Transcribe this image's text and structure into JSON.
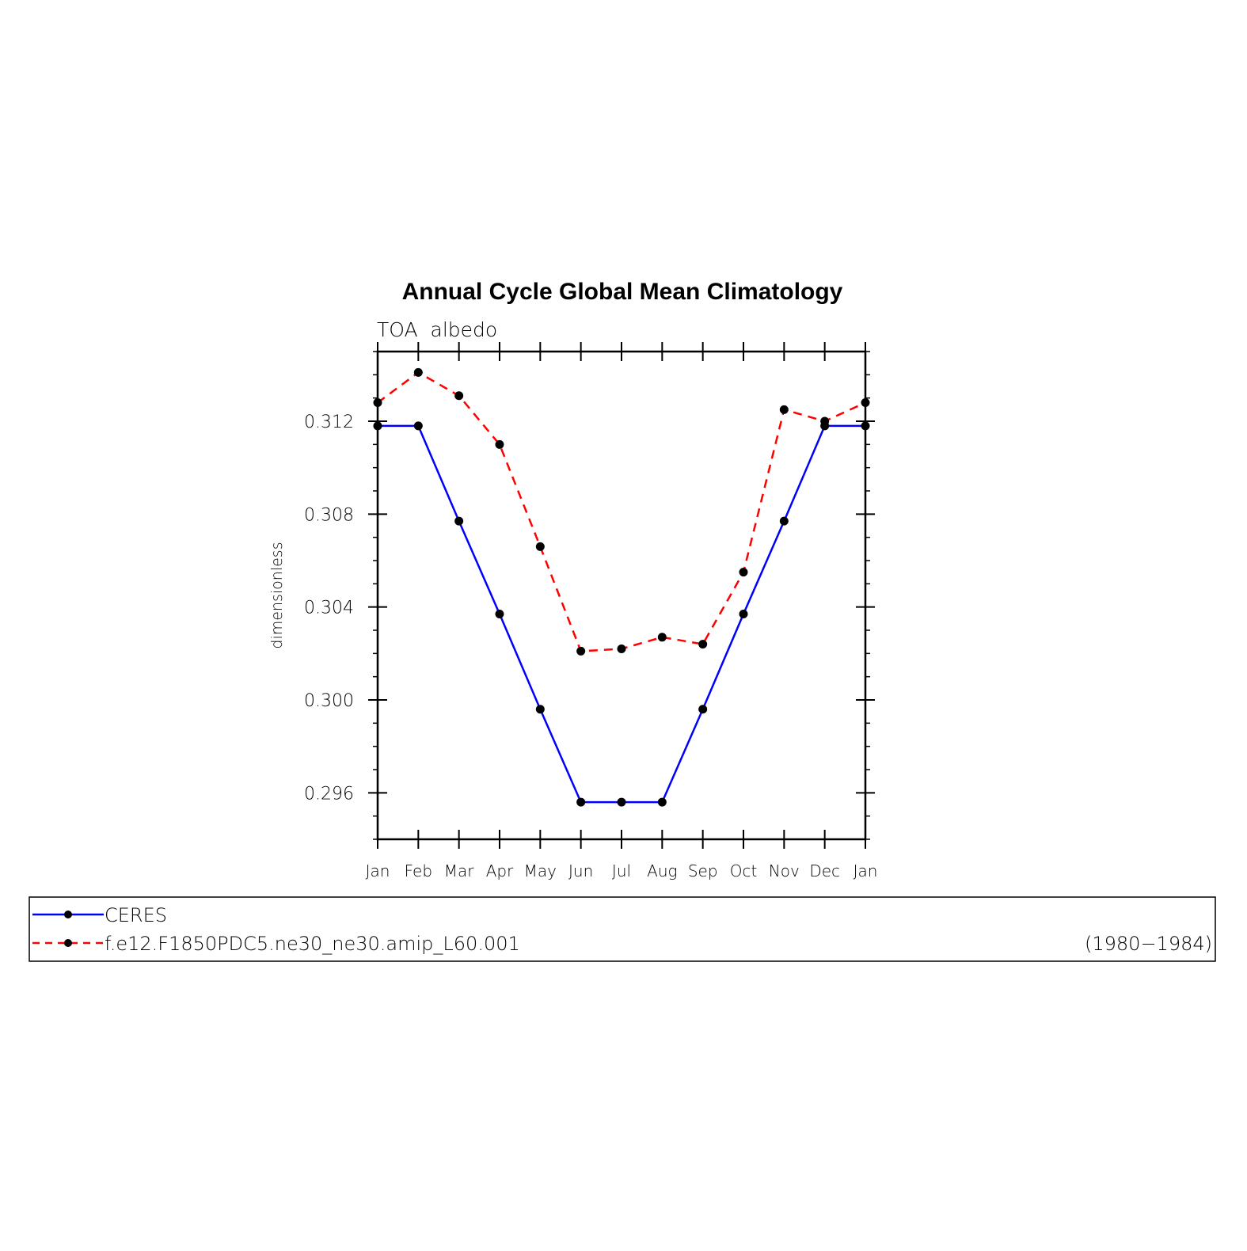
{
  "chart_data": {
    "type": "line",
    "title": "Annual Cycle Global Mean Climatology",
    "subtitle": "TOA  albedo",
    "xlabel": "",
    "ylabel": "dimensionless",
    "categories": [
      "Jan",
      "Feb",
      "Mar",
      "Apr",
      "May",
      "Jun",
      "Jul",
      "Aug",
      "Sep",
      "Oct",
      "Nov",
      "Dec",
      "Jan"
    ],
    "ylim": [
      0.294,
      0.315
    ],
    "yticks": [
      0.296,
      0.3,
      0.304,
      0.308,
      0.312
    ],
    "ytick_labels": [
      "0.296",
      "0.300",
      "0.304",
      "0.308",
      "0.312"
    ],
    "grid": false,
    "legend_position": "bottom",
    "series": [
      {
        "name": "CERES",
        "color": "#0000ff",
        "dash": "solid",
        "values": [
          0.3118,
          0.3118,
          0.3077,
          0.3037,
          0.2996,
          0.2956,
          0.2956,
          0.2956,
          0.2996,
          0.3037,
          0.3077,
          0.3118,
          0.3118
        ]
      },
      {
        "name": "f.e12.F1850PDC5.ne30_ne30.amip_L60.001",
        "color": "#ff0000",
        "dash": "dashed",
        "values": [
          0.3128,
          0.3141,
          0.3131,
          0.311,
          0.3066,
          0.3021,
          0.3022,
          0.3027,
          0.3024,
          0.3055,
          0.3125,
          0.312,
          0.3128
        ]
      }
    ],
    "legend_note": "(1980−1984)"
  }
}
